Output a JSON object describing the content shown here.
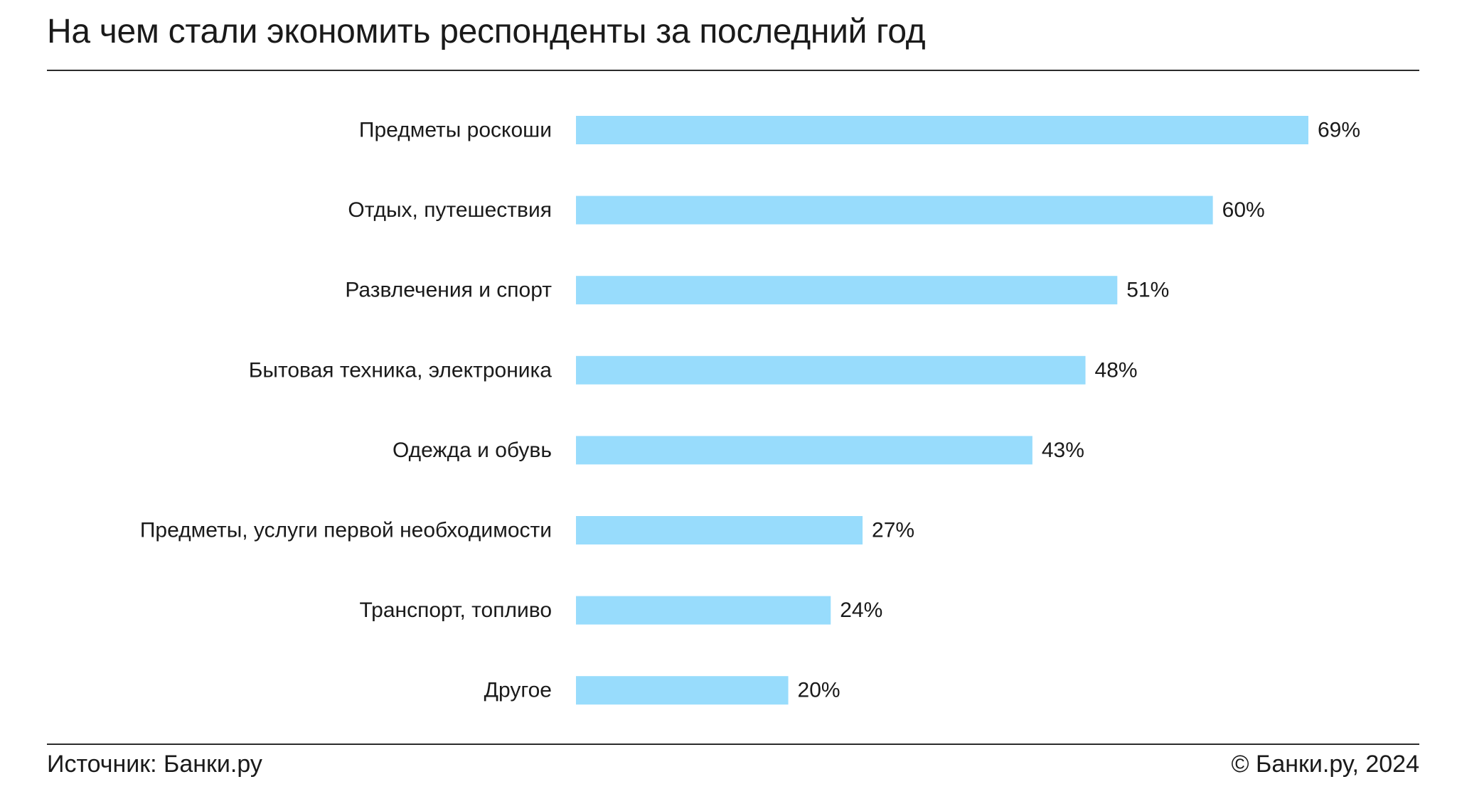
{
  "title": "На чем стали экономить респонденты за последний год",
  "footer": {
    "source": "Источник: Банки.ру",
    "copyright": "© Банки.ру, 2024"
  },
  "colors": {
    "bar": "#98dcfc",
    "text": "#1a1a1a",
    "rule": "#2b2b2b"
  },
  "chart_data": {
    "type": "bar",
    "orientation": "horizontal",
    "categories": [
      "Предметы роскоши",
      "Отдых, путешествия",
      "Развлечения и спорт",
      "Бытовая техника, электроника",
      "Одежда и обувь",
      "Предметы, услуги первой необходимости",
      "Транспорт, топливо",
      "Другое"
    ],
    "values": [
      69,
      60,
      51,
      48,
      43,
      27,
      24,
      20
    ],
    "value_labels": [
      "69%",
      "60%",
      "51%",
      "48%",
      "43%",
      "27%",
      "24%",
      "20%"
    ],
    "unit": "%",
    "xlim": [
      0,
      69
    ],
    "grid": false,
    "legend": "none",
    "title": "На чем стали экономить респонденты за последний год"
  }
}
